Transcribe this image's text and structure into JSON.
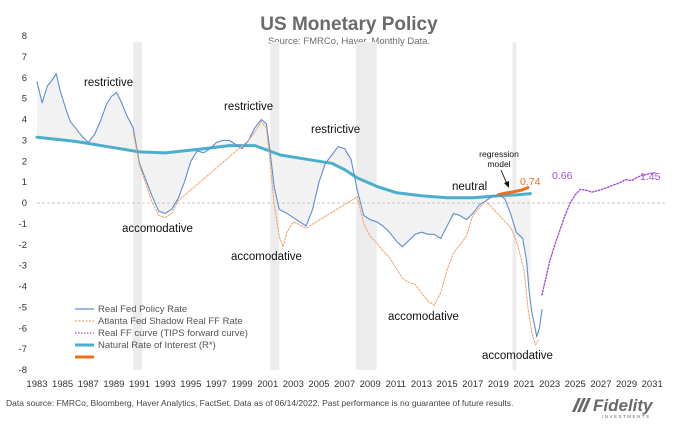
{
  "chart_data": {
    "type": "line",
    "title": "US Monetary Policy",
    "subtitle": "Source: FMRCo, Haver.  Monthly Data.",
    "xlim": [
      1983,
      2032
    ],
    "ylim": [
      -8,
      8
    ],
    "x_ticks": [
      "1983",
      "1985",
      "1987",
      "1989",
      "1991",
      "1993",
      "1995",
      "1997",
      "1999",
      "2001",
      "2003",
      "2005",
      "2007",
      "2009",
      "2011",
      "2013",
      "2015",
      "2017",
      "2019",
      "2021",
      "2023",
      "2025",
      "2027",
      "2029",
      "2031"
    ],
    "y_ticks": [
      "8",
      "7",
      "6",
      "5",
      "4",
      "3",
      "2",
      "1",
      "0",
      "-1",
      "-2",
      "-3",
      "-4",
      "-5",
      "-6",
      "-7",
      "-8"
    ],
    "recessions": [
      [
        1990.5,
        1991.2
      ],
      [
        2001.2,
        2001.9
      ],
      [
        2007.9,
        2009.5
      ],
      [
        2020.1,
        2020.4
      ]
    ],
    "series": [
      {
        "name": "Real Fed Policy Rate",
        "color": "#5b8fd0",
        "style": "solid",
        "points": [
          [
            1983,
            5.8
          ],
          [
            1983.4,
            4.8
          ],
          [
            1983.8,
            5.6
          ],
          [
            1984.2,
            5.9
          ],
          [
            1984.5,
            6.2
          ],
          [
            1984.8,
            5.4
          ],
          [
            1985.2,
            4.6
          ],
          [
            1985.6,
            3.9
          ],
          [
            1986,
            3.6
          ],
          [
            1986.5,
            3.2
          ],
          [
            1987,
            2.9
          ],
          [
            1987.5,
            3.3
          ],
          [
            1988,
            4.0
          ],
          [
            1988.4,
            4.7
          ],
          [
            1988.8,
            5.1
          ],
          [
            1989.2,
            5.3
          ],
          [
            1989.6,
            4.8
          ],
          [
            1990,
            4.2
          ],
          [
            1990.5,
            3.6
          ],
          [
            1991,
            1.9
          ],
          [
            1991.5,
            1.1
          ],
          [
            1992,
            0.3
          ],
          [
            1992.5,
            -0.4
          ],
          [
            1993,
            -0.5
          ],
          [
            1993.5,
            -0.3
          ],
          [
            1994,
            0.2
          ],
          [
            1994.5,
            1.0
          ],
          [
            1995,
            2.0
          ],
          [
            1995.5,
            2.5
          ],
          [
            1996,
            2.4
          ],
          [
            1996.5,
            2.6
          ],
          [
            1997,
            2.9
          ],
          [
            1997.5,
            3.0
          ],
          [
            1998,
            3.0
          ],
          [
            1998.5,
            2.8
          ],
          [
            1999,
            2.6
          ],
          [
            1999.5,
            3.0
          ],
          [
            2000,
            3.6
          ],
          [
            2000.5,
            4.0
          ],
          [
            2000.9,
            3.8
          ],
          [
            2001.2,
            2.4
          ],
          [
            2001.5,
            0.8
          ],
          [
            2001.9,
            -0.3
          ],
          [
            2002.5,
            -0.5
          ],
          [
            2003,
            -0.7
          ],
          [
            2003.5,
            -0.9
          ],
          [
            2004,
            -1.1
          ],
          [
            2004.5,
            -0.3
          ],
          [
            2005,
            1.0
          ],
          [
            2005.5,
            1.9
          ],
          [
            2006,
            2.3
          ],
          [
            2006.5,
            2.7
          ],
          [
            2007,
            2.6
          ],
          [
            2007.5,
            2.1
          ],
          [
            2008,
            0.6
          ],
          [
            2008.5,
            -0.6
          ],
          [
            2009,
            -0.8
          ],
          [
            2009.5,
            -0.9
          ],
          [
            2010,
            -1.1
          ],
          [
            2010.5,
            -1.4
          ],
          [
            2011,
            -1.8
          ],
          [
            2011.5,
            -2.1
          ],
          [
            2012,
            -1.8
          ],
          [
            2012.5,
            -1.5
          ],
          [
            2013,
            -1.4
          ],
          [
            2013.5,
            -1.5
          ],
          [
            2014,
            -1.5
          ],
          [
            2014.5,
            -1.7
          ],
          [
            2015,
            -1.1
          ],
          [
            2015.5,
            -0.5
          ],
          [
            2016,
            -0.6
          ],
          [
            2016.5,
            -0.8
          ],
          [
            2017,
            -0.5
          ],
          [
            2017.5,
            -0.1
          ],
          [
            2018,
            0.1
          ],
          [
            2018.5,
            0.3
          ],
          [
            2019,
            0.4
          ],
          [
            2019.5,
            0.2
          ],
          [
            2020,
            -0.6
          ],
          [
            2020.4,
            -1.4
          ],
          [
            2020.9,
            -1.7
          ],
          [
            2021.2,
            -2.8
          ],
          [
            2021.4,
            -4.2
          ],
          [
            2021.6,
            -5.2
          ],
          [
            2021.8,
            -5.8
          ],
          [
            2022,
            -6.4
          ],
          [
            2022.2,
            -6.0
          ],
          [
            2022.4,
            -5.1
          ]
        ]
      },
      {
        "name": "Atlanta Fed Shadow Real FF Rate",
        "color": "#f3a26c",
        "style": "dashed",
        "points": [
          [
            1990.5,
            3.4
          ],
          [
            1991,
            1.8
          ],
          [
            1991.5,
            0.9
          ],
          [
            1992,
            0.0
          ],
          [
            1992.5,
            -0.6
          ],
          [
            1993,
            -0.7
          ],
          [
            1993.5,
            -0.5
          ],
          [
            1994,
            0.1
          ],
          [
            1999.5,
            3.0
          ],
          [
            2000,
            3.4
          ],
          [
            2000.5,
            3.9
          ],
          [
            2000.9,
            3.6
          ],
          [
            2001.2,
            1.8
          ],
          [
            2001.5,
            0.0
          ],
          [
            2001.9,
            -1.6
          ],
          [
            2002.2,
            -2.1
          ],
          [
            2002.5,
            -1.4
          ],
          [
            2003,
            -0.9
          ],
          [
            2004,
            -1.2
          ],
          [
            2008,
            0.3
          ],
          [
            2008.5,
            -1.0
          ],
          [
            2009,
            -1.6
          ],
          [
            2009.5,
            -1.9
          ],
          [
            2010,
            -2.3
          ],
          [
            2010.5,
            -2.6
          ],
          [
            2011,
            -3.1
          ],
          [
            2011.5,
            -3.6
          ],
          [
            2012,
            -3.8
          ],
          [
            2012.5,
            -3.9
          ],
          [
            2013,
            -4.3
          ],
          [
            2013.5,
            -4.7
          ],
          [
            2014,
            -4.9
          ],
          [
            2014.5,
            -4.3
          ],
          [
            2015,
            -3.2
          ],
          [
            2015.5,
            -2.4
          ],
          [
            2016,
            -2.0
          ],
          [
            2016.5,
            -1.6
          ],
          [
            2017,
            -0.6
          ],
          [
            2018,
            0.1
          ],
          [
            2020,
            -1.2
          ],
          [
            2020.5,
            -2.0
          ],
          [
            2021,
            -3.2
          ],
          [
            2021.3,
            -5.0
          ],
          [
            2021.6,
            -6.2
          ],
          [
            2021.9,
            -6.8
          ],
          [
            2022.1,
            -6.6
          ]
        ]
      },
      {
        "name": "Real FF curve (TIPS forward curve)",
        "color": "#a64de0",
        "style": "dotted",
        "points": [
          [
            2022.4,
            -4.4
          ],
          [
            2022.7,
            -3.6
          ],
          [
            2023,
            -2.8
          ],
          [
            2023.4,
            -2.0
          ],
          [
            2023.8,
            -1.3
          ],
          [
            2024.2,
            -0.6
          ],
          [
            2024.6,
            0.0
          ],
          [
            2025,
            0.4
          ],
          [
            2025.4,
            0.66
          ],
          [
            2025.8,
            0.62
          ],
          [
            2026.3,
            0.52
          ],
          [
            2026.8,
            0.6
          ],
          [
            2027.4,
            0.72
          ],
          [
            2027.9,
            0.85
          ],
          [
            2028.4,
            0.95
          ],
          [
            2028.9,
            1.12
          ],
          [
            2029.4,
            1.08
          ],
          [
            2030,
            1.28
          ],
          [
            2030.6,
            1.38
          ],
          [
            2031.2,
            1.45
          ]
        ]
      },
      {
        "name": "Natural Rate of Interest (R*)",
        "color": "#4bafcc",
        "style": "thick",
        "points": [
          [
            1983,
            3.15
          ],
          [
            1986,
            2.95
          ],
          [
            1989,
            2.65
          ],
          [
            1991,
            2.45
          ],
          [
            1993,
            2.4
          ],
          [
            1996,
            2.6
          ],
          [
            1998,
            2.75
          ],
          [
            2000,
            2.75
          ],
          [
            2002,
            2.3
          ],
          [
            2004,
            2.1
          ],
          [
            2006,
            1.9
          ],
          [
            2007,
            1.6
          ],
          [
            2008,
            1.2
          ],
          [
            2009.5,
            0.8
          ],
          [
            2011,
            0.5
          ],
          [
            2013,
            0.35
          ],
          [
            2015,
            0.25
          ],
          [
            2017,
            0.25
          ],
          [
            2019,
            0.35
          ],
          [
            2020.5,
            0.4
          ],
          [
            2021.5,
            0.45
          ]
        ]
      },
      {
        "name": "",
        "color": "#ee6f1b",
        "style": "thick",
        "points": [
          [
            2019,
            0.4
          ],
          [
            2019.6,
            0.48
          ],
          [
            2020.2,
            0.54
          ],
          [
            2020.8,
            0.62
          ],
          [
            2021.3,
            0.74
          ]
        ]
      }
    ],
    "annotations": {
      "restrictive_1": "restrictive",
      "restrictive_2": "restrictive",
      "restrictive_3": "restrictive",
      "accomodative_1": "accomodative",
      "accomodative_2": "accomodative",
      "accomodative_3": "accomodative",
      "accomodative_4": "accomodative",
      "neutral": "neutral",
      "regression_1": "regression",
      "regression_2": "model",
      "value_074": "0.74",
      "value_066": "0.66",
      "value_145": "1.45"
    }
  },
  "footer": "Data source: FMRCo, Bloomberg, Haver Analytics, FactSet. Data as of 06/14/2022. Past performance is no guarantee of future results.",
  "logo": {
    "name": "Fidelity",
    "sub": "INVESTMENTS"
  }
}
